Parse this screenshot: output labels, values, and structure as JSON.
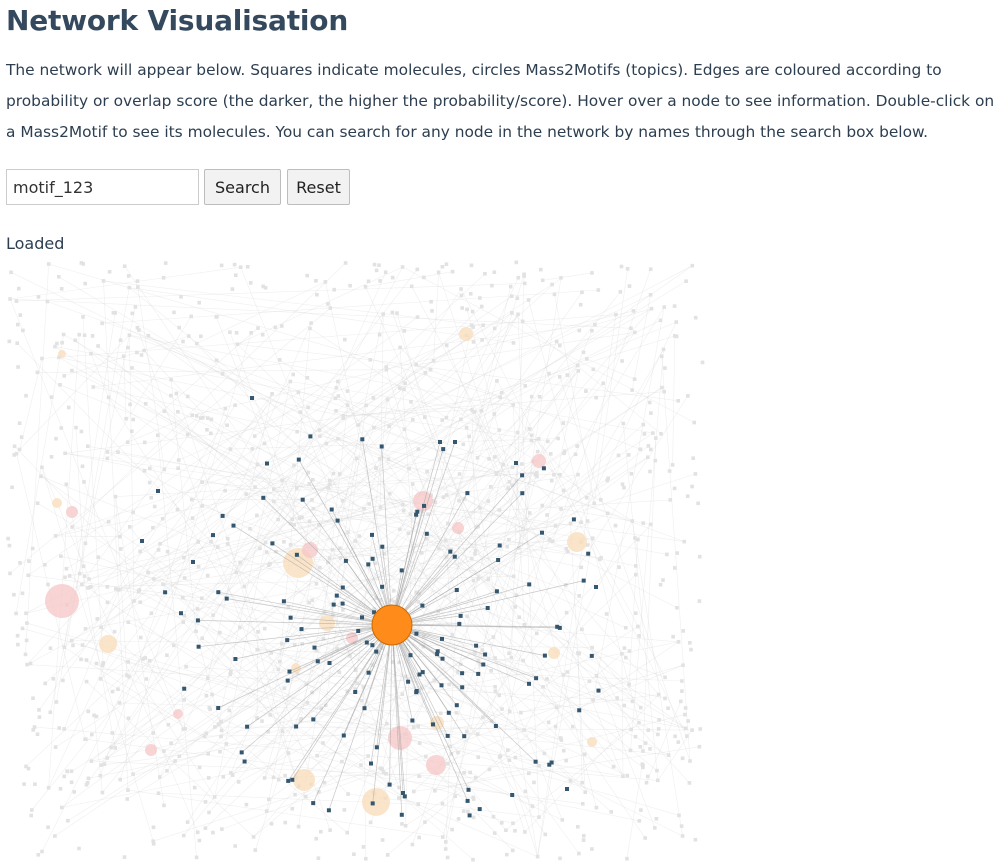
{
  "page": {
    "title": "Network Visualisation",
    "description": "The network will appear below. Squares indicate molecules, circles Mass2Motifs (topics). Edges are coloured according to probability or overlap score (the darker, the higher the probability/score). Hover over a node to see information. Double-click on a Mass2Motif to see its molecules. You can search for any node in the network by names through the search box below."
  },
  "search": {
    "value": "motif_123",
    "search_label": "Search",
    "reset_label": "Reset"
  },
  "status": {
    "text": "Loaded"
  },
  "network": {
    "colors": {
      "selected_motif": "#ff8c1a",
      "selected_motif_stroke": "#c96a00",
      "highlight_molecule": "#34566e",
      "faded_molecule": "#e2e2e2",
      "faded_edge": "#d0d0d0",
      "highlight_edge": "#9a9a9a",
      "faded_motif_pink": "#f5c6c6",
      "faded_motif_peach": "#f9dcb8"
    }
  }
}
